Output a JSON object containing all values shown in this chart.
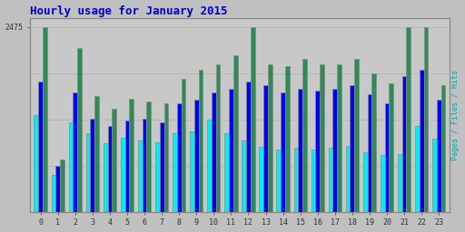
{
  "title": "Hourly usage for January 2015",
  "title_color": "#0000cc",
  "title_fontsize": 9,
  "ylabel_right": "Pages / Files / Hits",
  "hours": [
    0,
    1,
    2,
    3,
    4,
    5,
    6,
    7,
    8,
    9,
    10,
    11,
    12,
    13,
    14,
    15,
    16,
    17,
    18,
    19,
    20,
    21,
    22,
    23
  ],
  "hits": [
    2475,
    700,
    2200,
    1550,
    1380,
    1520,
    1480,
    1450,
    1780,
    1900,
    1980,
    2100,
    2475,
    1980,
    1950,
    2050,
    1980,
    1980,
    2050,
    1850,
    1720,
    2475,
    2475,
    1700
  ],
  "files": [
    1750,
    620,
    1600,
    1250,
    1150,
    1220,
    1250,
    1200,
    1450,
    1500,
    1600,
    1650,
    1750,
    1700,
    1600,
    1650,
    1620,
    1650,
    1700,
    1580,
    1450,
    1820,
    1900,
    1500
  ],
  "pages": [
    1300,
    500,
    1200,
    1050,
    920,
    990,
    960,
    930,
    1050,
    1080,
    1230,
    1050,
    960,
    870,
    840,
    860,
    840,
    860,
    880,
    800,
    760,
    780,
    1150,
    980
  ],
  "hits_color": "#2e8b57",
  "files_color": "#0000ee",
  "pages_color": "#00eeee",
  "bg_color": "#c0c0c0",
  "plot_bg_color": "#c8c8c8",
  "ymax": 2475,
  "ytick_label": "2475",
  "grid_color": "#b0b0b0",
  "bar_width": 0.25,
  "font_family": "monospace"
}
